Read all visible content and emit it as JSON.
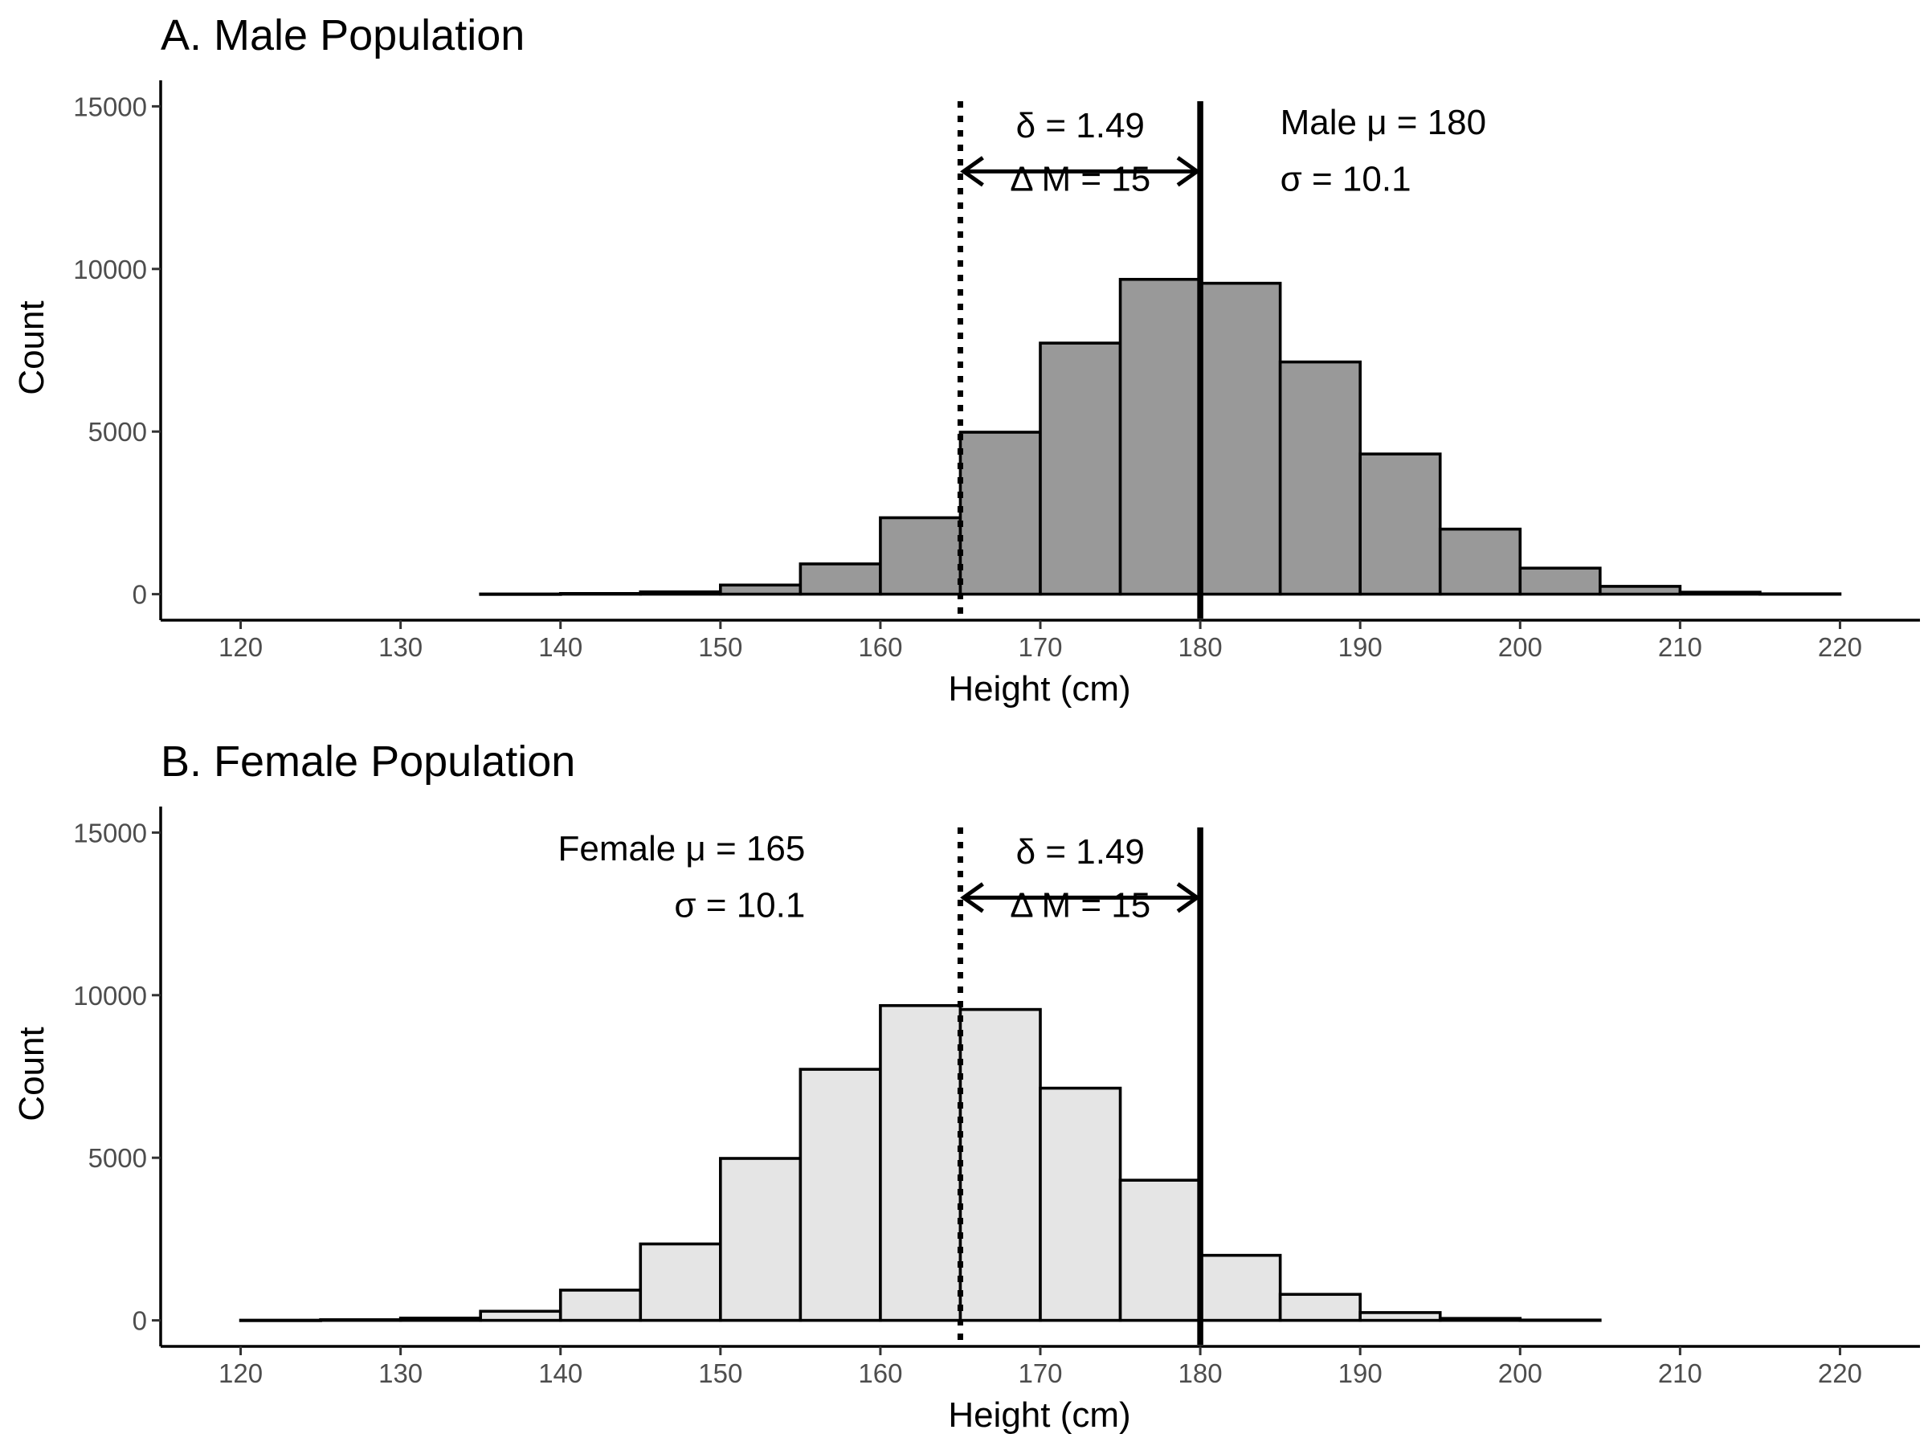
{
  "chart_data": [
    {
      "type": "bar",
      "title": "A. Male Population",
      "xlabel": "Height (cm)",
      "ylabel": "Count",
      "xlim": [
        115,
        225
      ],
      "ylim": [
        -800,
        15800
      ],
      "x_ticks": [
        "120",
        "130",
        "140",
        "150",
        "160",
        "170",
        "180",
        "190",
        "200",
        "210",
        "220"
      ],
      "y_ticks": [
        "0",
        "5000",
        "10000",
        "15000"
      ],
      "fill": "#999999",
      "bins": [
        {
          "x0": 135,
          "x1": 140,
          "count": 5
        },
        {
          "x0": 140,
          "x1": 145,
          "count": 20
        },
        {
          "x0": 145,
          "x1": 150,
          "count": 70
        },
        {
          "x0": 150,
          "x1": 155,
          "count": 280
        },
        {
          "x0": 155,
          "x1": 160,
          "count": 930
        },
        {
          "x0": 160,
          "x1": 165,
          "count": 2350
        },
        {
          "x0": 165,
          "x1": 170,
          "count": 4980
        },
        {
          "x0": 170,
          "x1": 175,
          "count": 7720
        },
        {
          "x0": 175,
          "x1": 180,
          "count": 9680
        },
        {
          "x0": 180,
          "x1": 185,
          "count": 9560
        },
        {
          "x0": 185,
          "x1": 190,
          "count": 7140
        },
        {
          "x0": 190,
          "x1": 195,
          "count": 4310
        },
        {
          "x0": 195,
          "x1": 200,
          "count": 2000
        },
        {
          "x0": 200,
          "x1": 205,
          "count": 800
        },
        {
          "x0": 205,
          "x1": 210,
          "count": 240
        },
        {
          "x0": 210,
          "x1": 215,
          "count": 60
        },
        {
          "x0": 215,
          "x1": 220,
          "count": 10
        }
      ],
      "vlines": [
        {
          "x": 165,
          "style": "dotted"
        },
        {
          "x": 180,
          "style": "solid"
        }
      ],
      "arrow": {
        "x0": 165,
        "x1": 180,
        "y": 13000
      },
      "annotations": [
        {
          "id": "delta",
          "text": "δ = 1.49",
          "x": 172.5,
          "y": 14050,
          "anchor": "middle"
        },
        {
          "id": "dm",
          "text": "Δ M = 15",
          "x": 172.5,
          "y": 12400,
          "anchor": "middle"
        },
        {
          "id": "mu",
          "text": "Male μ = 180",
          "x": 185,
          "y": 14150,
          "anchor": "start"
        },
        {
          "id": "sigma",
          "text": "σ = 10.1",
          "x": 185,
          "y": 12400,
          "anchor": "start"
        }
      ]
    },
    {
      "type": "bar",
      "title": "B. Female Population",
      "xlabel": "Height (cm)",
      "ylabel": "Count",
      "xlim": [
        115,
        225
      ],
      "ylim": [
        -800,
        15800
      ],
      "x_ticks": [
        "120",
        "130",
        "140",
        "150",
        "160",
        "170",
        "180",
        "190",
        "200",
        "210",
        "220"
      ],
      "y_ticks": [
        "0",
        "5000",
        "10000",
        "15000"
      ],
      "fill": "#e5e5e5",
      "bins": [
        {
          "x0": 120,
          "x1": 125,
          "count": 5
        },
        {
          "x0": 125,
          "x1": 130,
          "count": 20
        },
        {
          "x0": 130,
          "x1": 135,
          "count": 70
        },
        {
          "x0": 135,
          "x1": 140,
          "count": 280
        },
        {
          "x0": 140,
          "x1": 145,
          "count": 930
        },
        {
          "x0": 145,
          "x1": 150,
          "count": 2350
        },
        {
          "x0": 150,
          "x1": 155,
          "count": 4980
        },
        {
          "x0": 155,
          "x1": 160,
          "count": 7720
        },
        {
          "x0": 160,
          "x1": 165,
          "count": 9680
        },
        {
          "x0": 165,
          "x1": 170,
          "count": 9560
        },
        {
          "x0": 170,
          "x1": 175,
          "count": 7140
        },
        {
          "x0": 175,
          "x1": 180,
          "count": 4310
        },
        {
          "x0": 180,
          "x1": 185,
          "count": 2000
        },
        {
          "x0": 185,
          "x1": 190,
          "count": 800
        },
        {
          "x0": 190,
          "x1": 195,
          "count": 240
        },
        {
          "x0": 195,
          "x1": 200,
          "count": 60
        },
        {
          "x0": 200,
          "x1": 205,
          "count": 10
        }
      ],
      "vlines": [
        {
          "x": 165,
          "style": "dotted"
        },
        {
          "x": 180,
          "style": "solid"
        }
      ],
      "arrow": {
        "x0": 165,
        "x1": 180,
        "y": 13000
      },
      "annotations": [
        {
          "id": "delta",
          "text": "δ = 1.49",
          "x": 172.5,
          "y": 14050,
          "anchor": "middle"
        },
        {
          "id": "dm",
          "text": "Δ M = 15",
          "x": 172.5,
          "y": 12400,
          "anchor": "middle"
        },
        {
          "id": "mu",
          "text": "Female μ = 165",
          "x": 155.3,
          "y": 14150,
          "anchor": "end"
        },
        {
          "id": "sigma",
          "text": "σ = 10.1",
          "x": 155.3,
          "y": 12400,
          "anchor": "end"
        }
      ]
    }
  ]
}
